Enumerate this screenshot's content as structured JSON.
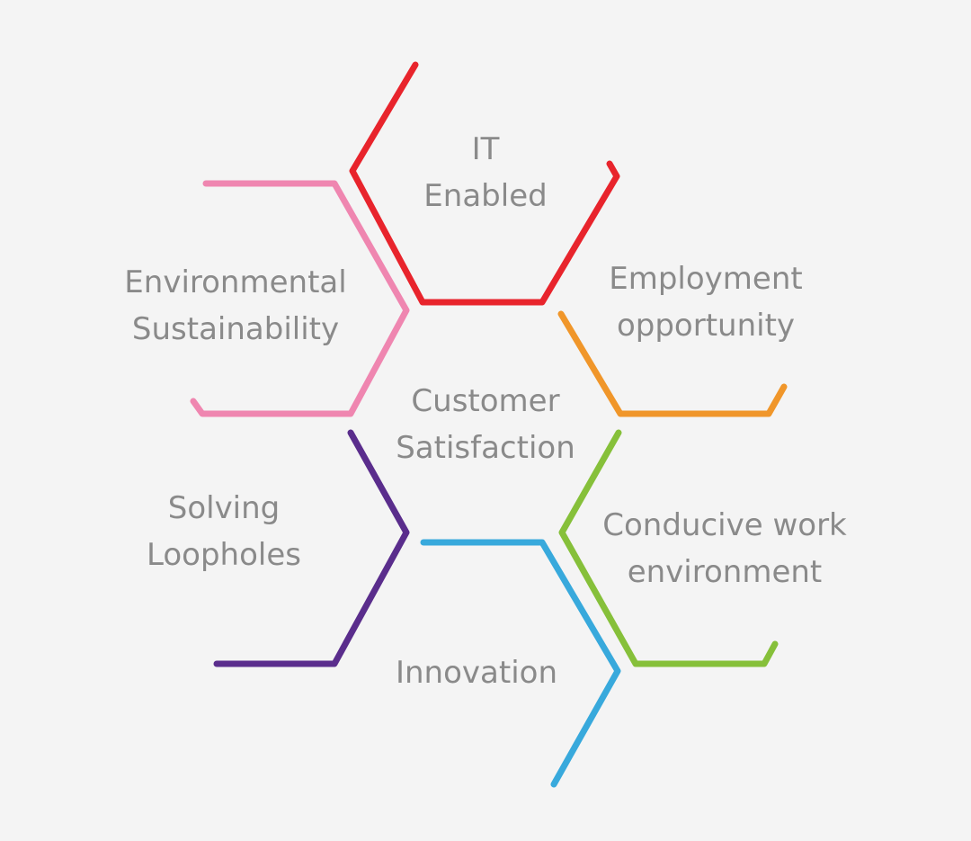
{
  "diagram": {
    "center": [
      "Customer",
      "Satisfaction"
    ],
    "segments": [
      {
        "id": "it",
        "lines": [
          "IT",
          "Enabled"
        ],
        "color": "#e8242c"
      },
      {
        "id": "employment",
        "lines": [
          "Employment",
          "opportunity"
        ],
        "color": "#f0962a"
      },
      {
        "id": "conducive",
        "lines": [
          "Conducive work",
          "environment"
        ],
        "color": "#86c03a"
      },
      {
        "id": "innovation",
        "lines": [
          "Innovation"
        ],
        "color": "#38a9dc"
      },
      {
        "id": "solving",
        "lines": [
          "Solving",
          "Loopholes"
        ],
        "color": "#5a2d8c"
      },
      {
        "id": "environmental",
        "lines": [
          "Environmental",
          "Sustainability"
        ],
        "color": "#ef86b0"
      }
    ]
  }
}
